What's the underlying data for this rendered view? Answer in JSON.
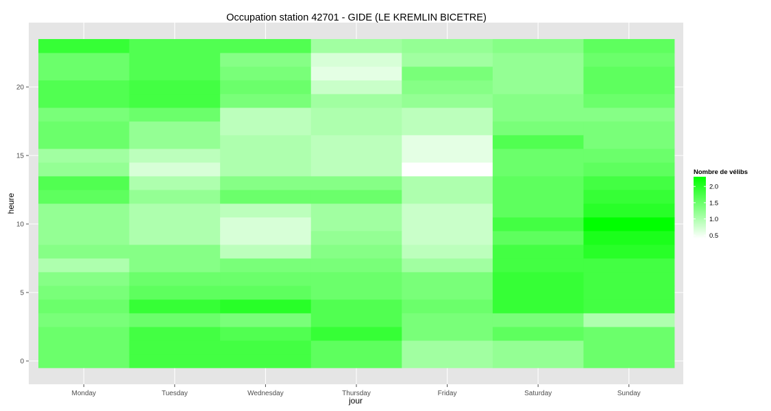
{
  "chart_data": {
    "type": "heatmap",
    "title": "Occupation station 42701 - GIDE (LE KREMLIN BICETRE)",
    "xlabel": "jour",
    "ylabel": "heure",
    "x_categories": [
      "Monday",
      "Tuesday",
      "Wednesday",
      "Thursday",
      "Friday",
      "Saturday",
      "Sunday"
    ],
    "y_range": [
      -0.5,
      23.5
    ],
    "y_ticks": [
      0,
      5,
      10,
      15,
      20
    ],
    "hours": [
      0,
      1,
      2,
      3,
      4,
      5,
      6,
      7,
      8,
      9,
      10,
      11,
      12,
      13,
      14,
      15,
      16,
      17,
      18,
      19,
      20,
      21,
      22,
      23
    ],
    "values": [
      [
        1.5,
        1.8,
        1.8,
        1.6,
        1.1,
        1.2,
        1.5
      ],
      [
        1.5,
        1.8,
        1.8,
        1.6,
        1.1,
        1.2,
        1.5
      ],
      [
        1.5,
        1.8,
        1.7,
        1.9,
        1.4,
        1.6,
        1.5
      ],
      [
        1.4,
        1.5,
        1.4,
        1.7,
        1.4,
        1.4,
        1.0
      ],
      [
        1.5,
        1.9,
        2.0,
        1.7,
        1.5,
        1.9,
        1.8
      ],
      [
        1.4,
        1.6,
        1.6,
        1.5,
        1.4,
        1.9,
        1.8
      ],
      [
        1.3,
        1.5,
        1.5,
        1.5,
        1.4,
        1.9,
        1.8
      ],
      [
        1.0,
        1.3,
        1.4,
        1.4,
        1.1,
        1.8,
        1.8
      ],
      [
        1.3,
        1.3,
        0.9,
        1.3,
        0.9,
        1.8,
        2.0
      ],
      [
        1.2,
        1.0,
        0.7,
        1.2,
        0.8,
        1.6,
        2.1
      ],
      [
        1.2,
        1.0,
        0.7,
        1.1,
        0.8,
        1.8,
        2.3
      ],
      [
        1.2,
        1.0,
        0.9,
        1.1,
        0.8,
        1.6,
        2.0
      ],
      [
        1.6,
        1.2,
        1.5,
        1.5,
        1.0,
        1.6,
        1.9
      ],
      [
        1.7,
        1.0,
        1.3,
        1.3,
        1.0,
        1.6,
        1.8
      ],
      [
        1.2,
        0.7,
        1.0,
        0.9,
        0.4,
        1.5,
        1.6
      ],
      [
        1.1,
        0.9,
        1.0,
        0.9,
        0.6,
        1.5,
        1.5
      ],
      [
        1.5,
        1.2,
        1.0,
        0.9,
        0.6,
        1.7,
        1.4
      ],
      [
        1.5,
        1.2,
        0.9,
        1.0,
        0.9,
        1.4,
        1.4
      ],
      [
        1.4,
        1.5,
        0.9,
        1.0,
        0.9,
        1.3,
        1.3
      ],
      [
        1.7,
        1.8,
        1.4,
        1.1,
        1.2,
        1.3,
        1.5
      ],
      [
        1.7,
        1.8,
        1.5,
        0.8,
        1.3,
        1.2,
        1.6
      ],
      [
        1.5,
        1.7,
        1.4,
        0.6,
        1.4,
        1.2,
        1.6
      ],
      [
        1.5,
        1.7,
        1.3,
        0.7,
        1.1,
        1.2,
        1.5
      ],
      [
        1.9,
        1.7,
        1.7,
        1.1,
        1.2,
        1.3,
        1.6
      ]
    ],
    "legend": {
      "title": "Nombre de vélibs",
      "ticks": [
        0.5,
        1.0,
        1.5,
        2.0
      ],
      "tick_labels": [
        "0.5",
        "1.0",
        "1.5",
        "2.0"
      ],
      "range": [
        0.4,
        2.3
      ],
      "color_low": "#ffffff",
      "color_high": "#00ff00",
      "placement": "right"
    },
    "colors": {
      "panel_background": "#e5e5e5",
      "grid": "#ffffff",
      "low": "#ffffff",
      "high": "#00ff00"
    },
    "grid": true
  }
}
